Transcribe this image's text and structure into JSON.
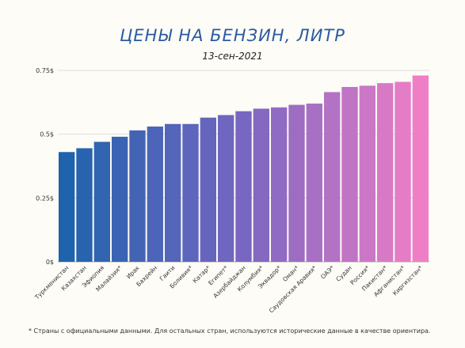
{
  "title": "ЦЕНЫ НА БЕНЗИН, ЛИТР",
  "subtitle": "13-сен-2021",
  "footnote": "* Страны с официальными данными. Для остальных стран, используются исторические данные в качестве ориентира.",
  "colors": {
    "start": "#1f63ad",
    "mid": "#7866c2",
    "end": "#f07ec6",
    "grid": "#dddddd",
    "axis": "#aaaaaa"
  },
  "chart_data": {
    "type": "bar",
    "categories": [
      "Туркменистан",
      "Казахстан",
      "Эфиопия",
      "Малайзия*",
      "Ирак",
      "Бахрейн",
      "Гаити",
      "Боливия*",
      "Катар*",
      "Египет*",
      "Азербайджан",
      "Колумбия*",
      "Эквадор*",
      "Оман*",
      "Саудовская Аравия*",
      "ОАЭ*",
      "Судан",
      "Россия*",
      "Пакистан*",
      "Афганистан*",
      "Киргизстан*"
    ],
    "values": [
      0.43,
      0.445,
      0.47,
      0.49,
      0.515,
      0.53,
      0.54,
      0.54,
      0.565,
      0.575,
      0.59,
      0.6,
      0.605,
      0.615,
      0.62,
      0.665,
      0.685,
      0.69,
      0.7,
      0.705,
      0.73
    ],
    "ylim": [
      0,
      0.75
    ],
    "yticks": [
      0,
      0.25,
      0.5,
      0.75
    ],
    "yticklabels": [
      "0$",
      "0.25$",
      "0.5$",
      "0.75$"
    ],
    "grid": true
  }
}
